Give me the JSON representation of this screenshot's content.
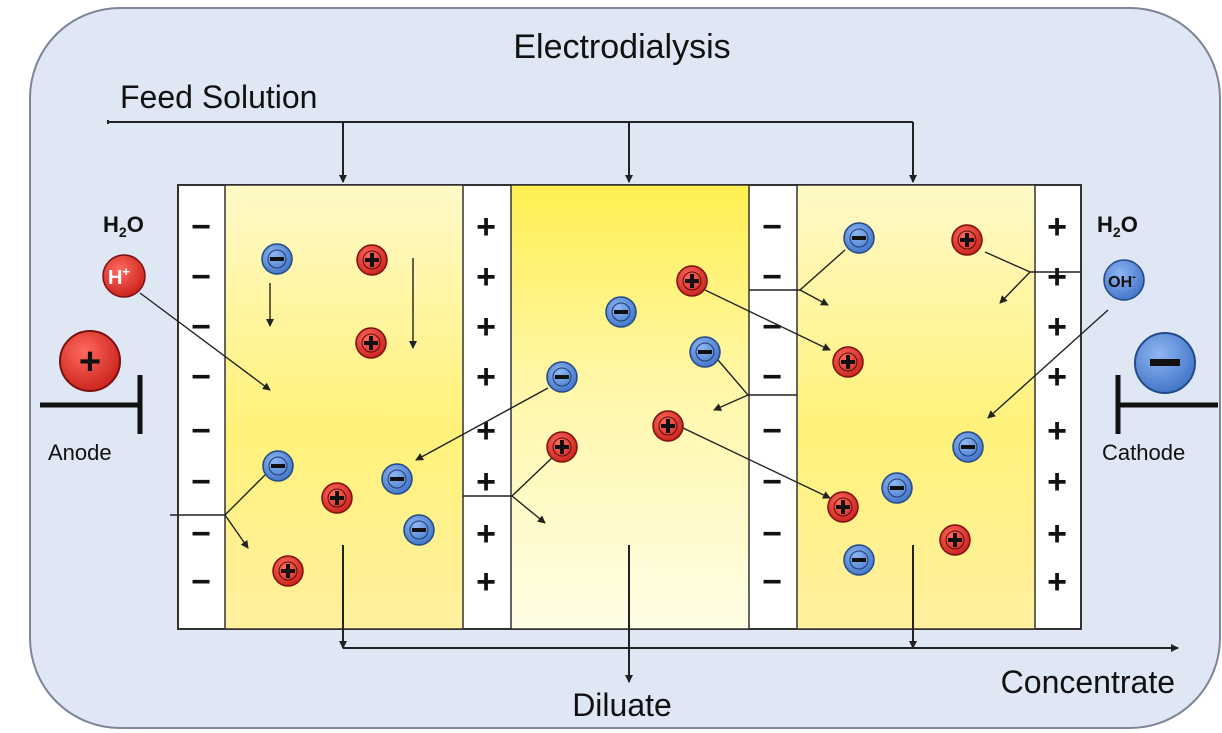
{
  "title": "Electrodialysis",
  "feed_label": "Feed Solution",
  "diluate_label": "Diluate",
  "concentrate_label": "Concentrate",
  "left_electrode": {
    "label": "Anode",
    "symbol": "+",
    "species": "H2O",
    "ion": "H",
    "ion_charge": "+"
  },
  "right_electrode": {
    "label": "Cathode",
    "symbol": "−",
    "species": "H2O",
    "ion": "OH",
    "ion_charge": "-"
  },
  "membranes": [
    {
      "type": "cation-exchange",
      "sign": "−"
    },
    {
      "type": "anion-exchange",
      "sign": "+"
    },
    {
      "type": "cation-exchange",
      "sign": "−"
    },
    {
      "type": "anion-exchange",
      "sign": "+"
    }
  ],
  "colors": {
    "background": "#dfe7f5",
    "chamber_yellow": "#fff27a",
    "chamber_light": "#fffbd4",
    "cation": "#d9302b",
    "anion": "#5b8fdc"
  },
  "icons": {
    "cation": "plus-circle-icon",
    "anion": "minus-circle-icon"
  }
}
